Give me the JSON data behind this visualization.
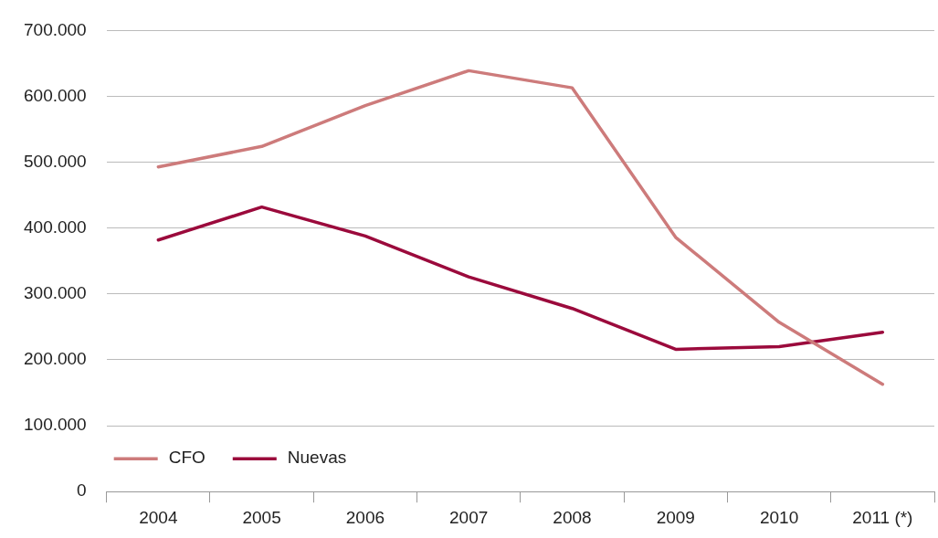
{
  "chart_data": {
    "type": "line",
    "categories": [
      "2004",
      "2005",
      "2006",
      "2007",
      "2008",
      "2009",
      "2010",
      "2011 (*)"
    ],
    "series": [
      {
        "name": "CFO",
        "color": "#cd7b7b",
        "values": [
          493000,
          524000,
          586000,
          639000,
          613000,
          386000,
          257000,
          163000
        ]
      },
      {
        "name": "Nuevas",
        "color": "#9b0a3c",
        "values": [
          382000,
          432000,
          388000,
          326000,
          278000,
          216000,
          220000,
          242000
        ]
      }
    ],
    "ylim": [
      0,
      700000
    ],
    "yticks": [
      {
        "value": 0,
        "label": "0"
      },
      {
        "value": 100000,
        "label": "100.000"
      },
      {
        "value": 200000,
        "label": "200.000"
      },
      {
        "value": 300000,
        "label": "300.000"
      },
      {
        "value": 400000,
        "label": "400.000"
      },
      {
        "value": 500000,
        "label": "500.000"
      },
      {
        "value": 600000,
        "label": "600.000"
      },
      {
        "value": 700000,
        "label": "700.000"
      }
    ],
    "grid": "y",
    "legend": "bottom left",
    "marker": "none",
    "line_style": "solid"
  }
}
